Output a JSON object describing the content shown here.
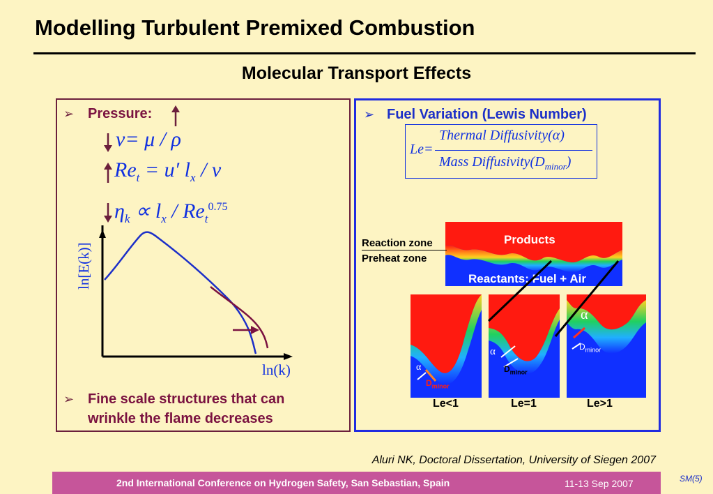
{
  "slide": {
    "title": "Modelling Turbulent Premixed Combustion",
    "subtitle": "Molecular Transport Effects"
  },
  "left": {
    "bullet1": "Pressure:",
    "eq1_lhs": "ν",
    "eq1_rhs": "= μ / ρ",
    "eq2_lhs": "Re",
    "eq2_sub": "t",
    "eq2_rhs1": " = u′ l",
    "eq2_sub2": "x",
    "eq2_rhs2": " / ν",
    "eq3_lhs": "η",
    "eq3_sub": "k",
    "eq3_mid": " ∝ l",
    "eq3_sub2": "x",
    "eq3_rhs": " / Re",
    "eq3_sub3": "t",
    "eq3_sup": "0.75",
    "yaxis_label": "ln[E(k)]",
    "xaxis_label": "ln(k)",
    "bullet2_line1": "Fine scale structures that can",
    "bullet2_line2": "wrinkle the flame decreases"
  },
  "right": {
    "bullet1": "Fuel Variation (Lewis Number)",
    "le_symbol": "Le=",
    "le_numerator": "Thermal Diffusivity(α)",
    "le_denominator_main": "Mass Diffusivity(D",
    "le_denominator_sub": "minor",
    "le_denominator_close": ")",
    "reaction_zone": "Reaction zone",
    "preheat_zone": "Preheat zone",
    "products": "Products",
    "reactants": "Reactants: Fuel + Air",
    "alpha": "α",
    "d_main": "D",
    "d_sub": "minor",
    "le_lt": "Le<1",
    "le_eq": "Le=1",
    "le_gt": "Le>1"
  },
  "citation": "Aluri NK, Doctoral Dissertation, University of Siegen 2007",
  "footer": {
    "conference": "2nd International Conference on Hydrogen Safety, San Sebastian, Spain",
    "date": "11-13 Sep 2007",
    "code": "SM(5)"
  },
  "colors": {
    "background": "#fdf4c3",
    "left_border": "#6b1f3c",
    "right_border": "#1f2be0",
    "footer": "#c6559a",
    "equation": "#1030e0",
    "flame_hot": "#ff1a10",
    "flame_cold": "#1030ff"
  }
}
